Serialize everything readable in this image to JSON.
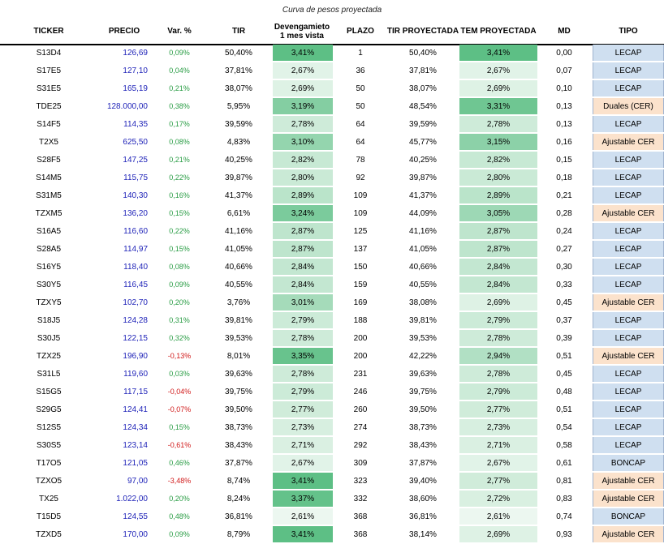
{
  "title": "Curva de pesos proyectada",
  "headers": {
    "ticker": "TICKER",
    "precio": "PRECIO",
    "var": "Var. %",
    "tir": "TIR",
    "dev1": "Devengamieto",
    "dev2": "1 mes vista",
    "plazo": "PLAZO",
    "tirp": "TIR PROYECTADA",
    "temp": "TEM PROYECTADA",
    "md": "MD",
    "tipo": "TIPO"
  },
  "colors": {
    "lecap_bg": "#cfdff0",
    "cer_bg": "#fbe2cc",
    "price_text": "#1f23b8",
    "positive_text": "#2a9d45",
    "negative_text": "#d11a1a",
    "green_strong": "#5dbf85",
    "green_light": "#eef8f1"
  },
  "rows": [
    {
      "ticker": "S13D4",
      "precio": "126,69",
      "var": "0,09%",
      "tir": "50,40%",
      "dev": "3,41%",
      "plazo": "1",
      "tirp": "50,40%",
      "temp": "3,41%",
      "md": "0,00",
      "tipo": "LECAP"
    },
    {
      "ticker": "S17E5",
      "precio": "127,10",
      "var": "0,04%",
      "tir": "37,81%",
      "dev": "2,67%",
      "plazo": "36",
      "tirp": "37,81%",
      "temp": "2,67%",
      "md": "0,07",
      "tipo": "LECAP"
    },
    {
      "ticker": "S31E5",
      "precio": "165,19",
      "var": "0,21%",
      "tir": "38,07%",
      "dev": "2,69%",
      "plazo": "50",
      "tirp": "38,07%",
      "temp": "2,69%",
      "md": "0,10",
      "tipo": "LECAP"
    },
    {
      "ticker": "TDE25",
      "precio": "128.000,00",
      "var": "0,38%",
      "tir": "5,95%",
      "dev": "3,19%",
      "plazo": "50",
      "tirp": "48,54%",
      "temp": "3,31%",
      "md": "0,13",
      "tipo": "Duales (CER)"
    },
    {
      "ticker": "S14F5",
      "precio": "114,35",
      "var": "0,17%",
      "tir": "39,59%",
      "dev": "2,78%",
      "plazo": "64",
      "tirp": "39,59%",
      "temp": "2,78%",
      "md": "0,13",
      "tipo": "LECAP"
    },
    {
      "ticker": "T2X5",
      "precio": "625,50",
      "var": "0,08%",
      "tir": "4,83%",
      "dev": "3,10%",
      "plazo": "64",
      "tirp": "45,77%",
      "temp": "3,15%",
      "md": "0,16",
      "tipo": "Ajustable CER"
    },
    {
      "ticker": "S28F5",
      "precio": "147,25",
      "var": "0,21%",
      "tir": "40,25%",
      "dev": "2,82%",
      "plazo": "78",
      "tirp": "40,25%",
      "temp": "2,82%",
      "md": "0,15",
      "tipo": "LECAP"
    },
    {
      "ticker": "S14M5",
      "precio": "115,75",
      "var": "0,22%",
      "tir": "39,87%",
      "dev": "2,80%",
      "plazo": "92",
      "tirp": "39,87%",
      "temp": "2,80%",
      "md": "0,18",
      "tipo": "LECAP"
    },
    {
      "ticker": "S31M5",
      "precio": "140,30",
      "var": "0,16%",
      "tir": "41,37%",
      "dev": "2,89%",
      "plazo": "109",
      "tirp": "41,37%",
      "temp": "2,89%",
      "md": "0,21",
      "tipo": "LECAP"
    },
    {
      "ticker": "TZXM5",
      "precio": "136,20",
      "var": "0,15%",
      "tir": "6,61%",
      "dev": "3,24%",
      "plazo": "109",
      "tirp": "44,09%",
      "temp": "3,05%",
      "md": "0,28",
      "tipo": "Ajustable CER"
    },
    {
      "ticker": "S16A5",
      "precio": "116,60",
      "var": "0,22%",
      "tir": "41,16%",
      "dev": "2,87%",
      "plazo": "125",
      "tirp": "41,16%",
      "temp": "2,87%",
      "md": "0,24",
      "tipo": "LECAP"
    },
    {
      "ticker": "S28A5",
      "precio": "114,97",
      "var": "0,15%",
      "tir": "41,05%",
      "dev": "2,87%",
      "plazo": "137",
      "tirp": "41,05%",
      "temp": "2,87%",
      "md": "0,27",
      "tipo": "LECAP"
    },
    {
      "ticker": "S16Y5",
      "precio": "118,40",
      "var": "0,08%",
      "tir": "40,66%",
      "dev": "2,84%",
      "plazo": "150",
      "tirp": "40,66%",
      "temp": "2,84%",
      "md": "0,30",
      "tipo": "LECAP"
    },
    {
      "ticker": "S30Y5",
      "precio": "116,45",
      "var": "0,09%",
      "tir": "40,55%",
      "dev": "2,84%",
      "plazo": "159",
      "tirp": "40,55%",
      "temp": "2,84%",
      "md": "0,33",
      "tipo": "LECAP"
    },
    {
      "ticker": "TZXY5",
      "precio": "102,70",
      "var": "0,20%",
      "tir": "3,76%",
      "dev": "3,01%",
      "plazo": "169",
      "tirp": "38,08%",
      "temp": "2,69%",
      "md": "0,45",
      "tipo": "Ajustable CER"
    },
    {
      "ticker": "S18J5",
      "precio": "124,28",
      "var": "0,31%",
      "tir": "39,81%",
      "dev": "2,79%",
      "plazo": "188",
      "tirp": "39,81%",
      "temp": "2,79%",
      "md": "0,37",
      "tipo": "LECAP"
    },
    {
      "ticker": "S30J5",
      "precio": "122,15",
      "var": "0,32%",
      "tir": "39,53%",
      "dev": "2,78%",
      "plazo": "200",
      "tirp": "39,53%",
      "temp": "2,78%",
      "md": "0,39",
      "tipo": "LECAP"
    },
    {
      "ticker": "TZX25",
      "precio": "196,90",
      "var": "-0,13%",
      "tir": "8,01%",
      "dev": "3,35%",
      "plazo": "200",
      "tirp": "42,22%",
      "temp": "2,94%",
      "md": "0,51",
      "tipo": "Ajustable CER"
    },
    {
      "ticker": "S31L5",
      "precio": "119,60",
      "var": "0,03%",
      "tir": "39,63%",
      "dev": "2,78%",
      "plazo": "231",
      "tirp": "39,63%",
      "temp": "2,78%",
      "md": "0,45",
      "tipo": "LECAP"
    },
    {
      "ticker": "S15G5",
      "precio": "117,15",
      "var": "-0,04%",
      "tir": "39,75%",
      "dev": "2,79%",
      "plazo": "246",
      "tirp": "39,75%",
      "temp": "2,79%",
      "md": "0,48",
      "tipo": "LECAP"
    },
    {
      "ticker": "S29G5",
      "precio": "124,41",
      "var": "-0,07%",
      "tir": "39,50%",
      "dev": "2,77%",
      "plazo": "260",
      "tirp": "39,50%",
      "temp": "2,77%",
      "md": "0,51",
      "tipo": "LECAP"
    },
    {
      "ticker": "S12S5",
      "precio": "124,34",
      "var": "0,15%",
      "tir": "38,73%",
      "dev": "2,73%",
      "plazo": "274",
      "tirp": "38,73%",
      "temp": "2,73%",
      "md": "0,54",
      "tipo": "LECAP"
    },
    {
      "ticker": "S30S5",
      "precio": "123,14",
      "var": "-0,61%",
      "tir": "38,43%",
      "dev": "2,71%",
      "plazo": "292",
      "tirp": "38,43%",
      "temp": "2,71%",
      "md": "0,58",
      "tipo": "LECAP"
    },
    {
      "ticker": "T17O5",
      "precio": "121,05",
      "var": "0,46%",
      "tir": "37,87%",
      "dev": "2,67%",
      "plazo": "309",
      "tirp": "37,87%",
      "temp": "2,67%",
      "md": "0,61",
      "tipo": "BONCAP"
    },
    {
      "ticker": "TZXO5",
      "precio": "97,00",
      "var": "-3,48%",
      "tir": "8,74%",
      "dev": "3,41%",
      "plazo": "323",
      "tirp": "39,40%",
      "temp": "2,77%",
      "md": "0,81",
      "tipo": "Ajustable CER"
    },
    {
      "ticker": "TX25",
      "precio": "1.022,00",
      "var": "0,20%",
      "tir": "8,24%",
      "dev": "3,37%",
      "plazo": "332",
      "tirp": "38,60%",
      "temp": "2,72%",
      "md": "0,83",
      "tipo": "Ajustable CER"
    },
    {
      "ticker": "T15D5",
      "precio": "124,55",
      "var": "0,48%",
      "tir": "36,81%",
      "dev": "2,61%",
      "plazo": "368",
      "tirp": "36,81%",
      "temp": "2,61%",
      "md": "0,74",
      "tipo": "BONCAP"
    },
    {
      "ticker": "TZXD5",
      "precio": "170,00",
      "var": "0,09%",
      "tir": "8,79%",
      "dev": "3,41%",
      "plazo": "368",
      "tirp": "38,14%",
      "temp": "2,69%",
      "md": "0,93",
      "tipo": "Ajustable CER"
    }
  ]
}
